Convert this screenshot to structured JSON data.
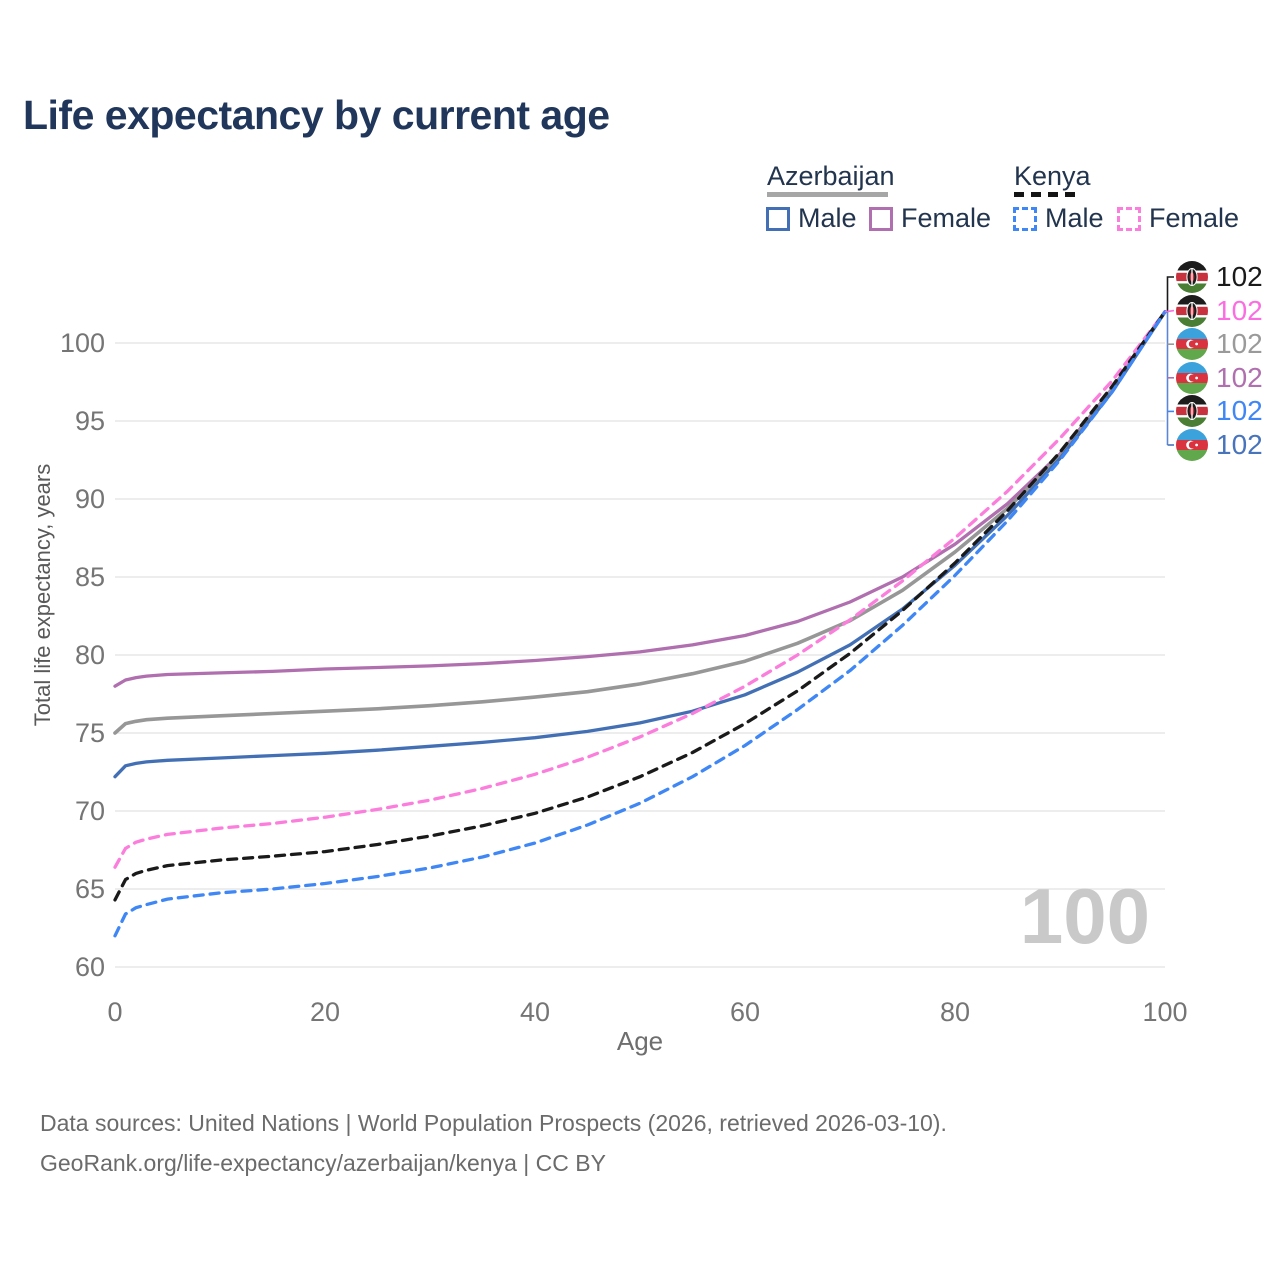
{
  "title": "Life expectancy by current age",
  "watermark": "100",
  "legend": {
    "groups": [
      {
        "id": "azerbaijan",
        "label": "Azerbaijan",
        "line_style": "solid",
        "underline_color": "#A6A6A6",
        "items": [
          {
            "label": "Male",
            "color": "#4370B4"
          },
          {
            "label": "Female",
            "color": "#B06FAE"
          }
        ]
      },
      {
        "id": "kenya",
        "label": "Kenya",
        "line_style": "dashed",
        "underline_color": "#141414",
        "items": [
          {
            "label": "Male",
            "color": "#3F87F5"
          },
          {
            "label": "Female",
            "color": "#FC7EDC"
          }
        ]
      }
    ]
  },
  "chart_data": {
    "type": "line",
    "title": "Life expectancy by current age",
    "xlabel": "Age",
    "ylabel": "Total life expectancy, years",
    "xlim": [
      0,
      100
    ],
    "ylim": [
      60,
      103
    ],
    "x_ticks": [
      0,
      20,
      40,
      60,
      80,
      100
    ],
    "y_ticks": [
      60,
      65,
      70,
      75,
      80,
      85,
      90,
      95,
      100
    ],
    "grid": "horizontal-only",
    "x": [
      0,
      1,
      2,
      3,
      5,
      10,
      15,
      20,
      25,
      30,
      35,
      40,
      45,
      50,
      55,
      60,
      65,
      70,
      75,
      80,
      85,
      90,
      95,
      100
    ],
    "series": [
      {
        "name": "Azerbaijan Female",
        "country": "azerbaijan",
        "sex": "female",
        "dash": false,
        "color": "#B06FAE",
        "values": [
          78.0,
          78.4,
          78.55,
          78.65,
          78.75,
          78.85,
          78.95,
          79.1,
          79.2,
          79.3,
          79.45,
          79.65,
          79.9,
          80.2,
          80.65,
          81.25,
          82.15,
          83.4,
          85.0,
          87.1,
          89.7,
          92.9,
          97.1,
          102
        ]
      },
      {
        "name": "Azerbaijan",
        "country": "azerbaijan",
        "sex": "total",
        "dash": false,
        "color": "#979797",
        "values": [
          75.0,
          75.6,
          75.75,
          75.85,
          75.95,
          76.1,
          76.25,
          76.4,
          76.55,
          76.75,
          77.0,
          77.3,
          77.65,
          78.15,
          78.8,
          79.6,
          80.75,
          82.2,
          84.15,
          86.6,
          89.4,
          92.75,
          97.0,
          102
        ]
      },
      {
        "name": "Azerbaijan Male",
        "country": "azerbaijan",
        "sex": "male",
        "dash": false,
        "color": "#4370B4",
        "values": [
          72.2,
          72.9,
          73.05,
          73.15,
          73.25,
          73.4,
          73.55,
          73.7,
          73.9,
          74.15,
          74.4,
          74.7,
          75.1,
          75.65,
          76.4,
          77.45,
          78.9,
          80.65,
          82.95,
          85.75,
          88.95,
          92.6,
          96.9,
          102
        ]
      },
      {
        "name": "Kenya Female",
        "country": "kenya",
        "sex": "female",
        "dash": true,
        "color": "#FC7EDC",
        "values": [
          66.4,
          67.6,
          68.0,
          68.2,
          68.5,
          68.9,
          69.2,
          69.6,
          70.1,
          70.7,
          71.45,
          72.35,
          73.45,
          74.75,
          76.25,
          78.0,
          80.0,
          82.25,
          84.75,
          87.5,
          90.5,
          93.9,
          97.6,
          102
        ]
      },
      {
        "name": "Kenya",
        "country": "kenya",
        "sex": "total",
        "dash": true,
        "color": "#1A1A1A",
        "values": [
          64.3,
          65.6,
          66.0,
          66.2,
          66.5,
          66.85,
          67.1,
          67.4,
          67.85,
          68.4,
          69.05,
          69.85,
          70.9,
          72.2,
          73.75,
          75.6,
          77.7,
          80.1,
          82.85,
          85.9,
          89.25,
          93.0,
          97.25,
          102
        ]
      },
      {
        "name": "Kenya Male",
        "country": "kenya",
        "sex": "male",
        "dash": true,
        "color": "#3F87F5",
        "values": [
          62.0,
          63.4,
          63.8,
          64.0,
          64.35,
          64.75,
          65.0,
          65.35,
          65.8,
          66.35,
          67.05,
          67.95,
          69.1,
          70.5,
          72.2,
          74.2,
          76.5,
          79.0,
          81.9,
          85.1,
          88.6,
          92.5,
          96.9,
          102
        ]
      }
    ]
  },
  "end_labels": [
    {
      "country": "kenya",
      "series": "Kenya",
      "value": "102",
      "color": "#1A1A1A"
    },
    {
      "country": "kenya",
      "series": "Kenya Female",
      "value": "102",
      "color": "#FB6EE1"
    },
    {
      "country": "azerbaijan",
      "series": "Azerbaijan",
      "value": "102",
      "color": "#9A9A9A"
    },
    {
      "country": "azerbaijan",
      "series": "Azerbaijan Female",
      "value": "102",
      "color": "#B06FAE"
    },
    {
      "country": "kenya",
      "series": "Kenya Male",
      "value": "102",
      "color": "#3F87F5"
    },
    {
      "country": "azerbaijan",
      "series": "Azerbaijan Male",
      "value": "102",
      "color": "#4874BC"
    }
  ],
  "footer": {
    "line1": "Data sources: United Nations | World Population Prospects (2026, retrieved 2026-03-10).",
    "line2": "GeoRank.org/life-expectancy/azerbaijan/kenya | CC BY"
  }
}
